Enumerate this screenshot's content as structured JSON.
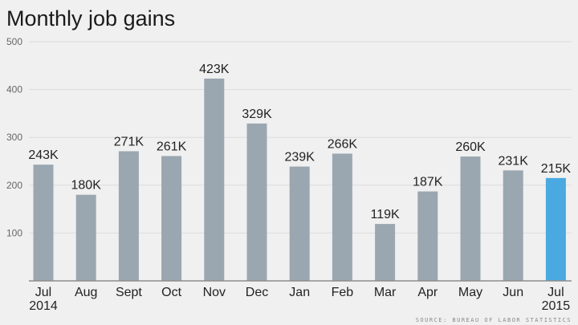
{
  "chart_data": {
    "type": "bar",
    "title": "Monthly job gains",
    "categories": [
      "Jul\n2014",
      "Aug",
      "Sept",
      "Oct",
      "Nov",
      "Dec",
      "Jan",
      "Feb",
      "Mar",
      "Apr",
      "May",
      "Jun",
      "Jul\n2015"
    ],
    "values": [
      243,
      180,
      271,
      261,
      423,
      329,
      239,
      266,
      119,
      187,
      260,
      231,
      215
    ],
    "data_labels": [
      "243K",
      "180K",
      "271K",
      "261K",
      "423K",
      "329K",
      "239K",
      "266K",
      "119K",
      "187K",
      "260K",
      "231K",
      "215K"
    ],
    "ylim": [
      0,
      500
    ],
    "yticks": [
      100,
      200,
      300,
      400,
      500
    ],
    "grid": true,
    "highlight_index": 12,
    "xlabel": "",
    "ylabel": "",
    "source": "SOURCE: BUREAU OF LABOR STATISTICS"
  },
  "colors": {
    "bar": "#9aa7b1",
    "highlight": "#4aa9e0"
  }
}
